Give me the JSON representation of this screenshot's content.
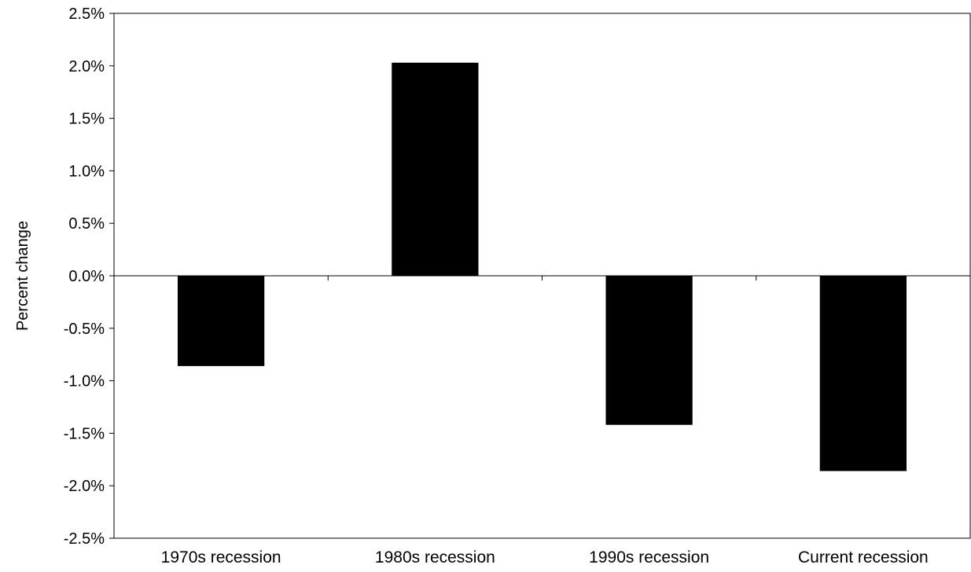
{
  "chart_data": {
    "type": "bar",
    "categories": [
      "1970s recession",
      "1980s recession",
      "1990s recession",
      "Current recession"
    ],
    "series": [
      {
        "values": [
          -0.86,
          2.03,
          -1.42,
          -1.86
        ],
        "color": "#000000"
      }
    ],
    "xlabel": "",
    "ylabel": "Percent change",
    "ylim": [
      -2.5,
      2.5
    ],
    "yticks": [
      2.5,
      2.0,
      1.5,
      1.0,
      0.5,
      0.0,
      -0.5,
      -1.0,
      -1.5,
      -2.0,
      -2.5
    ],
    "ytick_labels": [
      "2.5%",
      "2.0%",
      "1.5%",
      "1.0%",
      "0.5%",
      "0.0%",
      "-0.5%",
      "-1.0%",
      "-1.5%",
      "-2.0%",
      "-2.5%"
    ],
    "grid": false,
    "legend": "none"
  }
}
